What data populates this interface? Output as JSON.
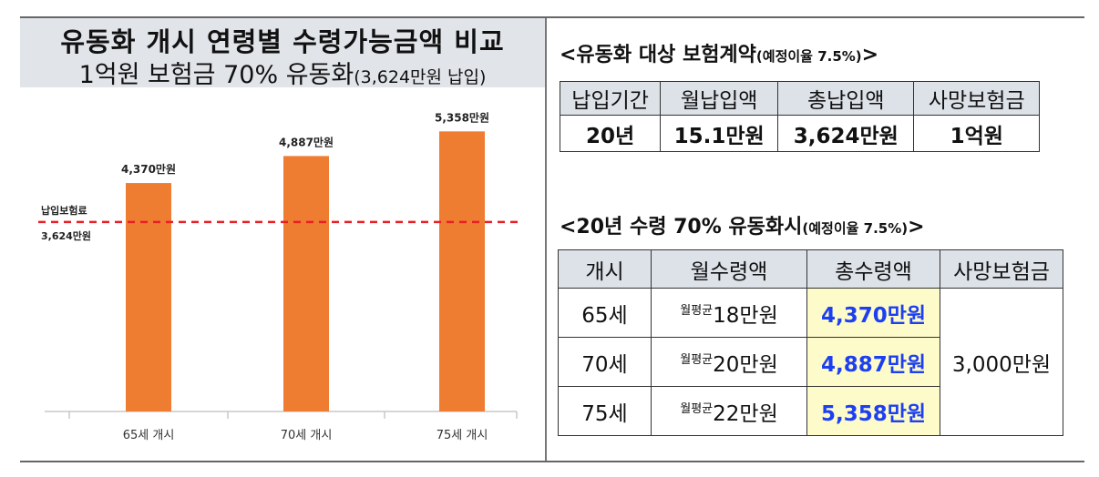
{
  "left_panel": {
    "title": "유동화 개시 연령별 수령가능금액 비교",
    "subtitle_main": "1억원 보험금 70% 유동화",
    "subtitle_paren": "(3,624만원 납입)"
  },
  "chart_data": {
    "type": "bar",
    "categories": [
      "65세 개시",
      "70세 개시",
      "75세 개시"
    ],
    "values": [
      4370,
      4887,
      5358
    ],
    "value_labels": [
      "4,370만원",
      "4,887만원",
      "5,358만원"
    ],
    "reference_line": {
      "value": 3624,
      "label_line1": "납입보험료",
      "label_line2": "3,624만원"
    },
    "ylim": [
      0,
      6200
    ],
    "colors": {
      "bar": "#ee7d31",
      "reference_line": "#e81f25"
    },
    "grid": false,
    "xlabel": "",
    "ylabel": ""
  },
  "section1": {
    "title": "<유동화 대상 보험계약",
    "title_note": "(예정이율 7.5%)",
    "title_end": ">",
    "headers": [
      "납입기간",
      "월납입액",
      "총납입액",
      "사망보험금"
    ],
    "row": [
      "20년",
      "15.1만원",
      "3,624만원",
      "1억원"
    ]
  },
  "section2": {
    "title": "<20년 수령 70% 유동화시",
    "title_note": "(예정이율 7.5%)",
    "title_end": ">",
    "headers": [
      "개시",
      "월수령액",
      "총수령액",
      "사망보험금"
    ],
    "monthly_prefix": "월평균",
    "rows": [
      {
        "start": "65세",
        "monthly": "18만원",
        "total": "4,370만원"
      },
      {
        "start": "70세",
        "monthly": "20만원",
        "total": "4,887만원"
      },
      {
        "start": "75세",
        "monthly": "22만원",
        "total": "5,358만원"
      }
    ],
    "death_benefit": "3,000만원",
    "highlight_color": "#fdfbc9",
    "highlight_text_color": "#1d3ff2"
  }
}
